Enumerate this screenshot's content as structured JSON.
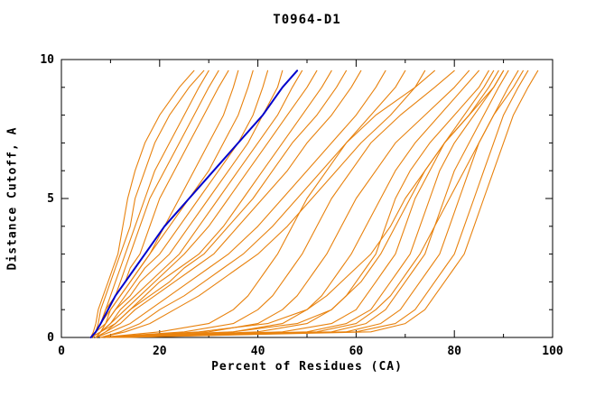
{
  "chart_data": {
    "type": "line",
    "title": "T0964-D1",
    "xlabel": "Percent of Residues (CA)",
    "ylabel": "Distance Cutoff, A",
    "xlim": [
      0,
      100
    ],
    "ylim": [
      0,
      10
    ],
    "x_ticks": [
      0,
      20,
      40,
      60,
      80,
      100
    ],
    "x_minor_step": 10,
    "y_ticks": [
      0,
      5,
      10
    ],
    "y_minor_step": 1,
    "grid": false,
    "legend": "none",
    "colors": {
      "model": "#e8820e",
      "highlight": "#0000cc",
      "axis": "#000000"
    },
    "y_grid": [
      0,
      0.2,
      0.5,
      1,
      1.5,
      2,
      2.5,
      3,
      4,
      5,
      6,
      7,
      8,
      9,
      9.6
    ],
    "series": [
      {
        "name": "model-01",
        "color": "model",
        "x": [
          6,
          6.5,
          7,
          7.5,
          8.5,
          9.5,
          10.5,
          11.5,
          12.5,
          13.5,
          15,
          17,
          20,
          24,
          27
        ]
      },
      {
        "name": "model-02",
        "color": "model",
        "x": [
          6,
          7,
          7.5,
          8,
          9,
          10,
          11,
          12,
          14,
          15,
          17,
          19,
          22,
          26,
          29
        ]
      },
      {
        "name": "model-03",
        "color": "model",
        "x": [
          6,
          7,
          8,
          9,
          10,
          11,
          12,
          13,
          15,
          17,
          19,
          22,
          25,
          28,
          30
        ]
      },
      {
        "name": "model-04",
        "color": "model",
        "x": [
          6.5,
          7,
          8,
          9.5,
          11,
          12,
          13,
          14,
          16,
          18,
          21,
          24,
          27,
          30,
          32
        ]
      },
      {
        "name": "model-05",
        "color": "model",
        "x": [
          6,
          7,
          8,
          9,
          11,
          13,
          14,
          16,
          18,
          20,
          23,
          26,
          29,
          32,
          34
        ]
      },
      {
        "name": "model-06",
        "color": "model",
        "x": [
          7,
          8,
          9,
          10,
          12,
          14,
          16,
          18,
          21,
          24,
          27,
          30,
          33,
          35,
          36
        ]
      },
      {
        "name": "model-07",
        "color": "model",
        "x": [
          6,
          7,
          8,
          10,
          12,
          14,
          16,
          18,
          22,
          26,
          30,
          33,
          36,
          38,
          39
        ]
      },
      {
        "name": "model-08",
        "color": "model",
        "x": [
          6,
          7,
          9,
          11,
          13,
          15,
          17,
          20,
          24,
          28,
          32,
          36,
          39,
          41,
          42
        ]
      },
      {
        "name": "model-09",
        "color": "model",
        "x": [
          6,
          8,
          9,
          11,
          14,
          16,
          19,
          22,
          26,
          30,
          34,
          38,
          41,
          44,
          45
        ]
      },
      {
        "name": "model-10",
        "color": "model",
        "x": [
          7,
          8,
          10,
          12,
          15,
          18,
          21,
          24,
          28,
          32,
          36,
          40,
          44,
          47,
          49
        ]
      },
      {
        "name": "model-11",
        "color": "model",
        "x": [
          6,
          8,
          10,
          13,
          16,
          19,
          22,
          25,
          30,
          34,
          38,
          42,
          46,
          50,
          52
        ]
      },
      {
        "name": "model-12",
        "color": "model",
        "x": [
          7,
          9,
          11,
          14,
          17,
          20,
          24,
          28,
          33,
          37,
          41,
          45,
          49,
          53,
          55
        ]
      },
      {
        "name": "model-13",
        "color": "model",
        "x": [
          6,
          8,
          11,
          14,
          18,
          22,
          25,
          29,
          34,
          39,
          43,
          47,
          52,
          56,
          58
        ]
      },
      {
        "name": "model-14",
        "color": "model",
        "x": [
          7,
          9,
          12,
          15,
          19,
          23,
          27,
          31,
          36,
          41,
          46,
          50,
          55,
          59,
          61
        ]
      },
      {
        "name": "model-15",
        "color": "model",
        "x": [
          7,
          10,
          14,
          18,
          22,
          26,
          30,
          34,
          40,
          45,
          50,
          55,
          60,
          64,
          66
        ]
      },
      {
        "name": "model-16",
        "color": "model",
        "x": [
          8,
          12,
          16,
          20,
          25,
          29,
          33,
          37,
          43,
          48,
          53,
          58,
          63,
          68,
          70
        ]
      },
      {
        "name": "model-17",
        "color": "model",
        "x": [
          8,
          13,
          18,
          23,
          28,
          32,
          36,
          40,
          46,
          51,
          56,
          61,
          67,
          72,
          74
        ]
      },
      {
        "name": "model-18",
        "color": "model",
        "x": [
          8,
          20,
          30,
          35,
          38,
          40,
          42,
          44,
          47,
          50,
          54,
          58,
          64,
          72,
          76
        ]
      },
      {
        "name": "model-19",
        "color": "model",
        "x": [
          8,
          25,
          35,
          40,
          43,
          45,
          47,
          49,
          52,
          55,
          59,
          63,
          69,
          76,
          80
        ]
      },
      {
        "name": "model-20",
        "color": "model",
        "x": [
          9,
          30,
          40,
          45,
          48,
          50,
          52,
          54,
          57,
          60,
          64,
          68,
          74,
          80,
          83
        ]
      },
      {
        "name": "model-21",
        "color": "model",
        "x": [
          9,
          35,
          45,
          50,
          53,
          55,
          57,
          59,
          62,
          65,
          68,
          72,
          77,
          82,
          85
        ]
      },
      {
        "name": "model-22",
        "color": "model",
        "x": [
          10,
          40,
          50,
          55,
          58,
          60,
          62,
          64,
          66,
          68,
          71,
          75,
          80,
          85,
          87
        ]
      },
      {
        "name": "model-23",
        "color": "model",
        "x": [
          10,
          45,
          55,
          60,
          62,
          64,
          66,
          68,
          70,
          72,
          75,
          78,
          82,
          86,
          88
        ]
      },
      {
        "name": "model-24",
        "color": "model",
        "x": [
          11,
          50,
          58,
          63,
          65,
          67,
          69,
          71,
          73,
          75,
          77,
          80,
          84,
          88,
          90
        ]
      },
      {
        "name": "model-25",
        "color": "model",
        "x": [
          11,
          55,
          62,
          66,
          68,
          70,
          72,
          74,
          76,
          78,
          80,
          83,
          86,
          89,
          91
        ]
      },
      {
        "name": "model-26",
        "color": "model",
        "x": [
          12,
          58,
          65,
          69,
          71,
          73,
          75,
          77,
          79,
          81,
          83,
          85,
          88,
          91,
          93
        ]
      },
      {
        "name": "model-27",
        "color": "model",
        "x": [
          12,
          60,
          68,
          72,
          74,
          76,
          78,
          80,
          82,
          84,
          86,
          88,
          90,
          93,
          95
        ]
      },
      {
        "name": "model-28",
        "color": "model",
        "x": [
          13,
          63,
          70,
          74,
          76,
          78,
          80,
          82,
          84,
          86,
          88,
          90,
          92,
          95,
          97
        ]
      },
      {
        "name": "model-29",
        "color": "model",
        "x": [
          10,
          35,
          48,
          55,
          58,
          61,
          63,
          65,
          68,
          71,
          74,
          78,
          83,
          88,
          90
        ]
      },
      {
        "name": "model-30",
        "color": "model",
        "x": [
          9,
          28,
          42,
          50,
          54,
          57,
          60,
          63,
          67,
          70,
          74,
          78,
          83,
          87,
          89
        ]
      },
      {
        "name": "model-31",
        "color": "model",
        "x": [
          11,
          52,
          60,
          64,
          67,
          69,
          71,
          73,
          76,
          79,
          82,
          85,
          88,
          92,
          94
        ]
      },
      {
        "name": "highlighted-model",
        "color": "highlight",
        "x": [
          6,
          7,
          8,
          9.5,
          11,
          13,
          15,
          17,
          21,
          26,
          31,
          36,
          41,
          45,
          48
        ]
      }
    ]
  }
}
